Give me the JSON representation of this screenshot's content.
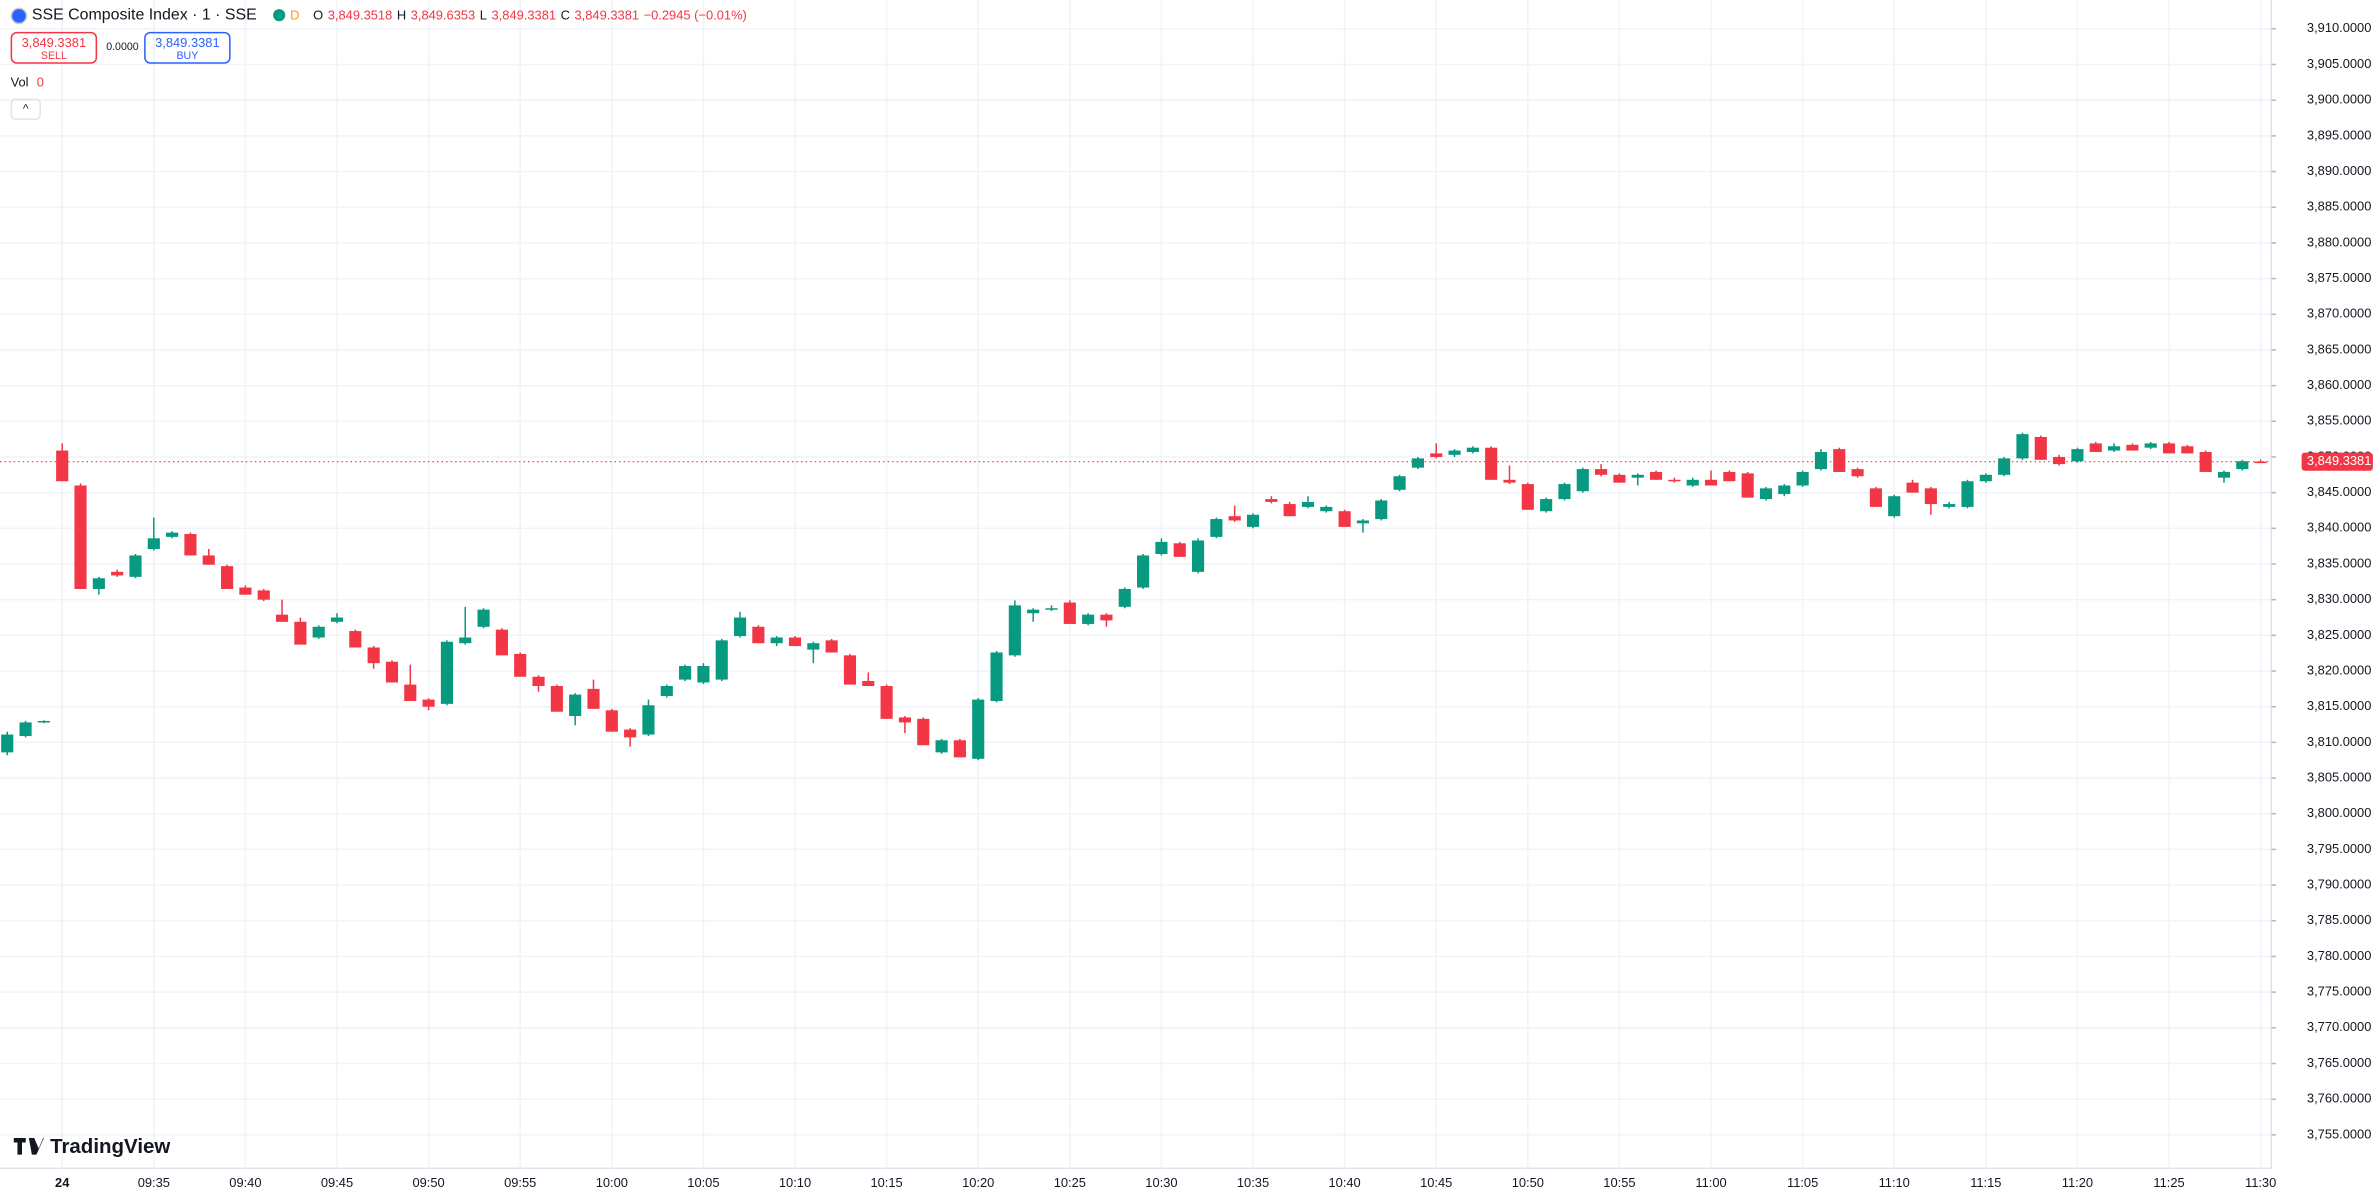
{
  "header": {
    "symbol": "SSE Composite Index · 1 · SSE",
    "session": "D",
    "open_label": "O",
    "open": "3,849.3518",
    "high_label": "H",
    "high": "3,849.6353",
    "low_label": "L",
    "low": "3,849.3381",
    "close_label": "C",
    "close": "3,849.3381",
    "change": "−0.2945 (−0.01%)"
  },
  "trade": {
    "sell_price": "3,849.3381",
    "sell": "SELL",
    "spread": "0.0000",
    "buy_price": "3,849.3381",
    "buy": "BUY"
  },
  "volume": {
    "label": "Vol",
    "value": "0"
  },
  "branding": "TradingView",
  "chart_data": {
    "type": "candlestick",
    "up_color": "#089981",
    "down_color": "#f23645",
    "grid": true,
    "last_price": {
      "value": 3849.3381,
      "label": "3,849.3381"
    },
    "ylim": [
      3750.32,
      3914.04
    ],
    "yticks": [
      {
        "value": 3910,
        "label": "3,910.0000"
      },
      {
        "value": 3905,
        "label": "3,905.0000"
      },
      {
        "value": 3900,
        "label": "3,900.0000"
      },
      {
        "value": 3895,
        "label": "3,895.0000"
      },
      {
        "value": 3890,
        "label": "3,890.0000"
      },
      {
        "value": 3885,
        "label": "3,885.0000"
      },
      {
        "value": 3880,
        "label": "3,880.0000"
      },
      {
        "value": 3875,
        "label": "3,875.0000"
      },
      {
        "value": 3870,
        "label": "3,870.0000"
      },
      {
        "value": 3865,
        "label": "3,865.0000"
      },
      {
        "value": 3860,
        "label": "3,860.0000"
      },
      {
        "value": 3855,
        "label": "3,855.0000"
      },
      {
        "value": 3850,
        "label": "3,850.0000"
      },
      {
        "value": 3845,
        "label": "3,845.0000"
      },
      {
        "value": 3840,
        "label": "3,840.0000"
      },
      {
        "value": 3835,
        "label": "3,835.0000"
      },
      {
        "value": 3830,
        "label": "3,830.0000"
      },
      {
        "value": 3825,
        "label": "3,825.0000"
      },
      {
        "value": 3820,
        "label": "3,820.0000"
      },
      {
        "value": 3815,
        "label": "3,815.0000"
      },
      {
        "value": 3810,
        "label": "3,810.0000"
      },
      {
        "value": 3805,
        "label": "3,805.0000"
      },
      {
        "value": 3800,
        "label": "3,800.0000"
      },
      {
        "value": 3795,
        "label": "3,795.0000"
      },
      {
        "value": 3790,
        "label": "3,790.0000"
      },
      {
        "value": 3785,
        "label": "3,785.0000"
      },
      {
        "value": 3780,
        "label": "3,780.0000"
      },
      {
        "value": 3775,
        "label": "3,775.0000"
      },
      {
        "value": 3770,
        "label": "3,770.0000"
      },
      {
        "value": 3765,
        "label": "3,765.0000"
      },
      {
        "value": 3760,
        "label": "3,760.0000"
      },
      {
        "value": 3755,
        "label": "3,755.0000"
      }
    ],
    "categories": [
      null,
      null,
      null,
      "24",
      null,
      null,
      null,
      null,
      "09:35",
      null,
      null,
      null,
      null,
      "09:40",
      null,
      null,
      null,
      null,
      "09:45",
      null,
      null,
      null,
      null,
      "09:50",
      null,
      null,
      null,
      null,
      "09:55",
      null,
      null,
      null,
      null,
      "10:00",
      null,
      null,
      null,
      null,
      "10:05",
      null,
      null,
      null,
      null,
      "10:10",
      null,
      null,
      null,
      null,
      "10:15",
      null,
      null,
      null,
      null,
      "10:20",
      null,
      null,
      null,
      null,
      "10:25",
      null,
      null,
      null,
      null,
      "10:30",
      null,
      null,
      null,
      null,
      "10:35",
      null,
      null,
      null,
      null,
      "10:40",
      null,
      null,
      null,
      null,
      "10:45",
      null,
      null,
      null,
      null,
      "10:50",
      null,
      null,
      null,
      null,
      "10:55",
      null,
      null,
      null,
      null,
      "11:00",
      null,
      null,
      null,
      null,
      "11:05",
      null,
      null,
      null,
      null,
      "11:10",
      null,
      null,
      null,
      null,
      "11:15",
      null,
      null,
      null,
      null,
      "11:20",
      null,
      null,
      null,
      null,
      "11:25",
      null,
      null,
      null,
      null,
      "11:30"
    ],
    "ohlc": [
      [
        3808.6,
        3811.5,
        3808.2,
        3811.1
      ],
      [
        3810.9,
        3813.0,
        3810.7,
        3812.8
      ],
      [
        3812.8,
        3813.1,
        3812.7,
        3813.0
      ],
      [
        3850.9,
        3851.9,
        3846.6,
        3846.6
      ],
      [
        3846.0,
        3846.3,
        3831.5,
        3831.5
      ],
      [
        3831.5,
        3833.2,
        3830.7,
        3833.0
      ],
      [
        3833.9,
        3834.2,
        3833.2,
        3833.4
      ],
      [
        3833.2,
        3836.4,
        3833.0,
        3836.2
      ],
      [
        3837.1,
        3841.5,
        3836.9,
        3838.6
      ],
      [
        3838.8,
        3839.6,
        3838.6,
        3839.4
      ],
      [
        3839.2,
        3839.4,
        3836.2,
        3836.2
      ],
      [
        3836.2,
        3837.1,
        3834.9,
        3834.9
      ],
      [
        3834.7,
        3834.9,
        3831.5,
        3831.5
      ],
      [
        3831.7,
        3832.0,
        3830.7,
        3830.7
      ],
      [
        3831.3,
        3831.5,
        3829.8,
        3830.0
      ],
      [
        3827.9,
        3830.0,
        3826.9,
        3826.9
      ],
      [
        3826.9,
        3827.5,
        3823.7,
        3823.7
      ],
      [
        3824.7,
        3826.4,
        3824.5,
        3826.2
      ],
      [
        3826.9,
        3828.1,
        3826.7,
        3827.5
      ],
      [
        3825.6,
        3825.8,
        3823.3,
        3823.3
      ],
      [
        3823.3,
        3823.5,
        3820.3,
        3821.1
      ],
      [
        3821.3,
        3821.5,
        3818.4,
        3818.4
      ],
      [
        3818.1,
        3820.9,
        3815.8,
        3815.8
      ],
      [
        3816.0,
        3816.2,
        3814.5,
        3815.0
      ],
      [
        3815.4,
        3824.3,
        3815.2,
        3824.1
      ],
      [
        3823.9,
        3829.0,
        3823.7,
        3824.7
      ],
      [
        3826.2,
        3828.8,
        3826.0,
        3828.6
      ],
      [
        3825.8,
        3826.0,
        3822.2,
        3822.2
      ],
      [
        3822.4,
        3822.6,
        3819.2,
        3819.2
      ],
      [
        3819.2,
        3819.4,
        3817.1,
        3817.9
      ],
      [
        3817.9,
        3818.1,
        3814.3,
        3814.3
      ],
      [
        3813.7,
        3816.9,
        3812.4,
        3816.7
      ],
      [
        3817.5,
        3818.8,
        3814.7,
        3814.7
      ],
      [
        3814.5,
        3814.7,
        3811.5,
        3811.5
      ],
      [
        3811.8,
        3812.0,
        3809.4,
        3810.7
      ],
      [
        3811.1,
        3816.0,
        3810.9,
        3815.2
      ],
      [
        3816.5,
        3818.1,
        3816.3,
        3817.9
      ],
      [
        3818.8,
        3820.9,
        3818.6,
        3820.7
      ],
      [
        3818.4,
        3821.1,
        3818.2,
        3820.7
      ],
      [
        3818.8,
        3824.5,
        3818.6,
        3824.3
      ],
      [
        3824.9,
        3828.3,
        3824.7,
        3827.5
      ],
      [
        3826.2,
        3826.4,
        3823.9,
        3823.9
      ],
      [
        3823.9,
        3824.9,
        3823.5,
        3824.7
      ],
      [
        3824.7,
        3824.9,
        3823.5,
        3823.5
      ],
      [
        3823.0,
        3824.1,
        3821.1,
        3823.9
      ],
      [
        3824.3,
        3824.5,
        3822.6,
        3822.6
      ],
      [
        3822.2,
        3822.4,
        3818.1,
        3818.1
      ],
      [
        3818.6,
        3819.8,
        3817.9,
        3817.9
      ],
      [
        3817.9,
        3818.1,
        3813.3,
        3813.3
      ],
      [
        3813.5,
        3813.7,
        3811.3,
        3812.8
      ],
      [
        3813.3,
        3813.5,
        3809.6,
        3809.6
      ],
      [
        3808.6,
        3810.5,
        3808.4,
        3810.3
      ],
      [
        3810.3,
        3810.5,
        3807.9,
        3807.9
      ],
      [
        3807.7,
        3816.2,
        3807.5,
        3816.0
      ],
      [
        3815.8,
        3822.8,
        3815.6,
        3822.6
      ],
      [
        3822.2,
        3829.9,
        3822.0,
        3829.2
      ],
      [
        3828.1,
        3828.8,
        3826.9,
        3828.6
      ],
      [
        3828.6,
        3829.2,
        3828.4,
        3828.8
      ],
      [
        3829.6,
        3829.9,
        3826.6,
        3826.6
      ],
      [
        3826.6,
        3828.1,
        3826.4,
        3827.9
      ],
      [
        3827.9,
        3828.1,
        3826.2,
        3827.1
      ],
      [
        3829.0,
        3831.7,
        3828.8,
        3831.5
      ],
      [
        3831.7,
        3836.4,
        3831.5,
        3836.2
      ],
      [
        3836.4,
        3838.6,
        3836.2,
        3838.1
      ],
      [
        3837.9,
        3838.1,
        3836.0,
        3836.0
      ],
      [
        3833.9,
        3838.6,
        3833.7,
        3838.3
      ],
      [
        3838.8,
        3841.5,
        3838.6,
        3841.3
      ],
      [
        3841.7,
        3843.2,
        3840.9,
        3841.1
      ],
      [
        3840.2,
        3842.1,
        3840.0,
        3841.9
      ],
      [
        3844.1,
        3844.5,
        3843.5,
        3843.7
      ],
      [
        3843.4,
        3843.7,
        3841.7,
        3841.7
      ],
      [
        3843.0,
        3844.5,
        3842.8,
        3843.7
      ],
      [
        3842.4,
        3843.2,
        3842.2,
        3843.0
      ],
      [
        3842.4,
        3842.6,
        3840.2,
        3840.2
      ],
      [
        3840.7,
        3841.3,
        3839.4,
        3841.1
      ],
      [
        3841.3,
        3844.1,
        3841.1,
        3843.9
      ],
      [
        3845.4,
        3847.5,
        3845.2,
        3847.3
      ],
      [
        3848.5,
        3850.0,
        3848.3,
        3849.8
      ],
      [
        3850.5,
        3851.9,
        3849.8,
        3850.0
      ],
      [
        3850.3,
        3851.1,
        3850.0,
        3850.9
      ],
      [
        3850.7,
        3851.5,
        3850.5,
        3851.3
      ],
      [
        3851.3,
        3851.5,
        3846.8,
        3846.8
      ],
      [
        3846.8,
        3848.8,
        3846.2,
        3846.4
      ],
      [
        3846.2,
        3846.4,
        3842.6,
        3842.6
      ],
      [
        3842.4,
        3844.3,
        3842.2,
        3844.1
      ],
      [
        3844.1,
        3846.4,
        3843.9,
        3846.2
      ],
      [
        3845.2,
        3848.5,
        3845.0,
        3848.3
      ],
      [
        3848.3,
        3849.0,
        3847.3,
        3847.5
      ],
      [
        3847.5,
        3847.7,
        3846.4,
        3846.4
      ],
      [
        3847.1,
        3847.7,
        3846.0,
        3847.5
      ],
      [
        3847.9,
        3848.1,
        3846.8,
        3846.8
      ],
      [
        3846.8,
        3847.1,
        3846.4,
        3846.6
      ],
      [
        3846.0,
        3847.1,
        3845.8,
        3846.8
      ],
      [
        3846.8,
        3848.1,
        3846.0,
        3846.0
      ],
      [
        3847.9,
        3848.1,
        3846.6,
        3846.6
      ],
      [
        3847.7,
        3847.9,
        3844.3,
        3844.3
      ],
      [
        3844.1,
        3845.8,
        3843.9,
        3845.6
      ],
      [
        3844.8,
        3846.2,
        3844.5,
        3846.0
      ],
      [
        3846.0,
        3848.1,
        3845.8,
        3847.9
      ],
      [
        3848.3,
        3851.1,
        3848.1,
        3850.7
      ],
      [
        3851.1,
        3851.3,
        3847.9,
        3847.9
      ],
      [
        3848.3,
        3848.5,
        3847.1,
        3847.3
      ],
      [
        3845.6,
        3845.8,
        3843.0,
        3843.0
      ],
      [
        3841.7,
        3844.7,
        3841.5,
        3844.5
      ],
      [
        3846.4,
        3846.8,
        3845.0,
        3845.0
      ],
      [
        3845.6,
        3845.8,
        3841.9,
        3843.4
      ],
      [
        3843.0,
        3843.7,
        3842.8,
        3843.4
      ],
      [
        3843.0,
        3846.8,
        3842.8,
        3846.6
      ],
      [
        3846.6,
        3847.7,
        3846.4,
        3847.5
      ],
      [
        3847.5,
        3850.0,
        3847.3,
        3849.8
      ],
      [
        3849.8,
        3853.4,
        3849.6,
        3853.2
      ],
      [
        3852.8,
        3853.0,
        3849.6,
        3849.6
      ],
      [
        3850.0,
        3850.3,
        3848.8,
        3849.0
      ],
      [
        3849.4,
        3851.3,
        3849.2,
        3851.1
      ],
      [
        3851.9,
        3852.1,
        3850.7,
        3850.7
      ],
      [
        3850.9,
        3851.9,
        3850.7,
        3851.5
      ],
      [
        3851.7,
        3851.9,
        3850.9,
        3850.9
      ],
      [
        3851.3,
        3852.1,
        3851.1,
        3851.9
      ],
      [
        3851.9,
        3852.1,
        3850.5,
        3850.5
      ],
      [
        3851.5,
        3851.7,
        3850.5,
        3850.5
      ],
      [
        3850.7,
        3850.9,
        3847.9,
        3847.9
      ],
      [
        3847.1,
        3848.1,
        3846.4,
        3847.9
      ],
      [
        3848.3,
        3849.6,
        3848.1,
        3849.4
      ],
      [
        3849.3518,
        3849.6353,
        3849.3381,
        3849.3381
      ]
    ]
  }
}
